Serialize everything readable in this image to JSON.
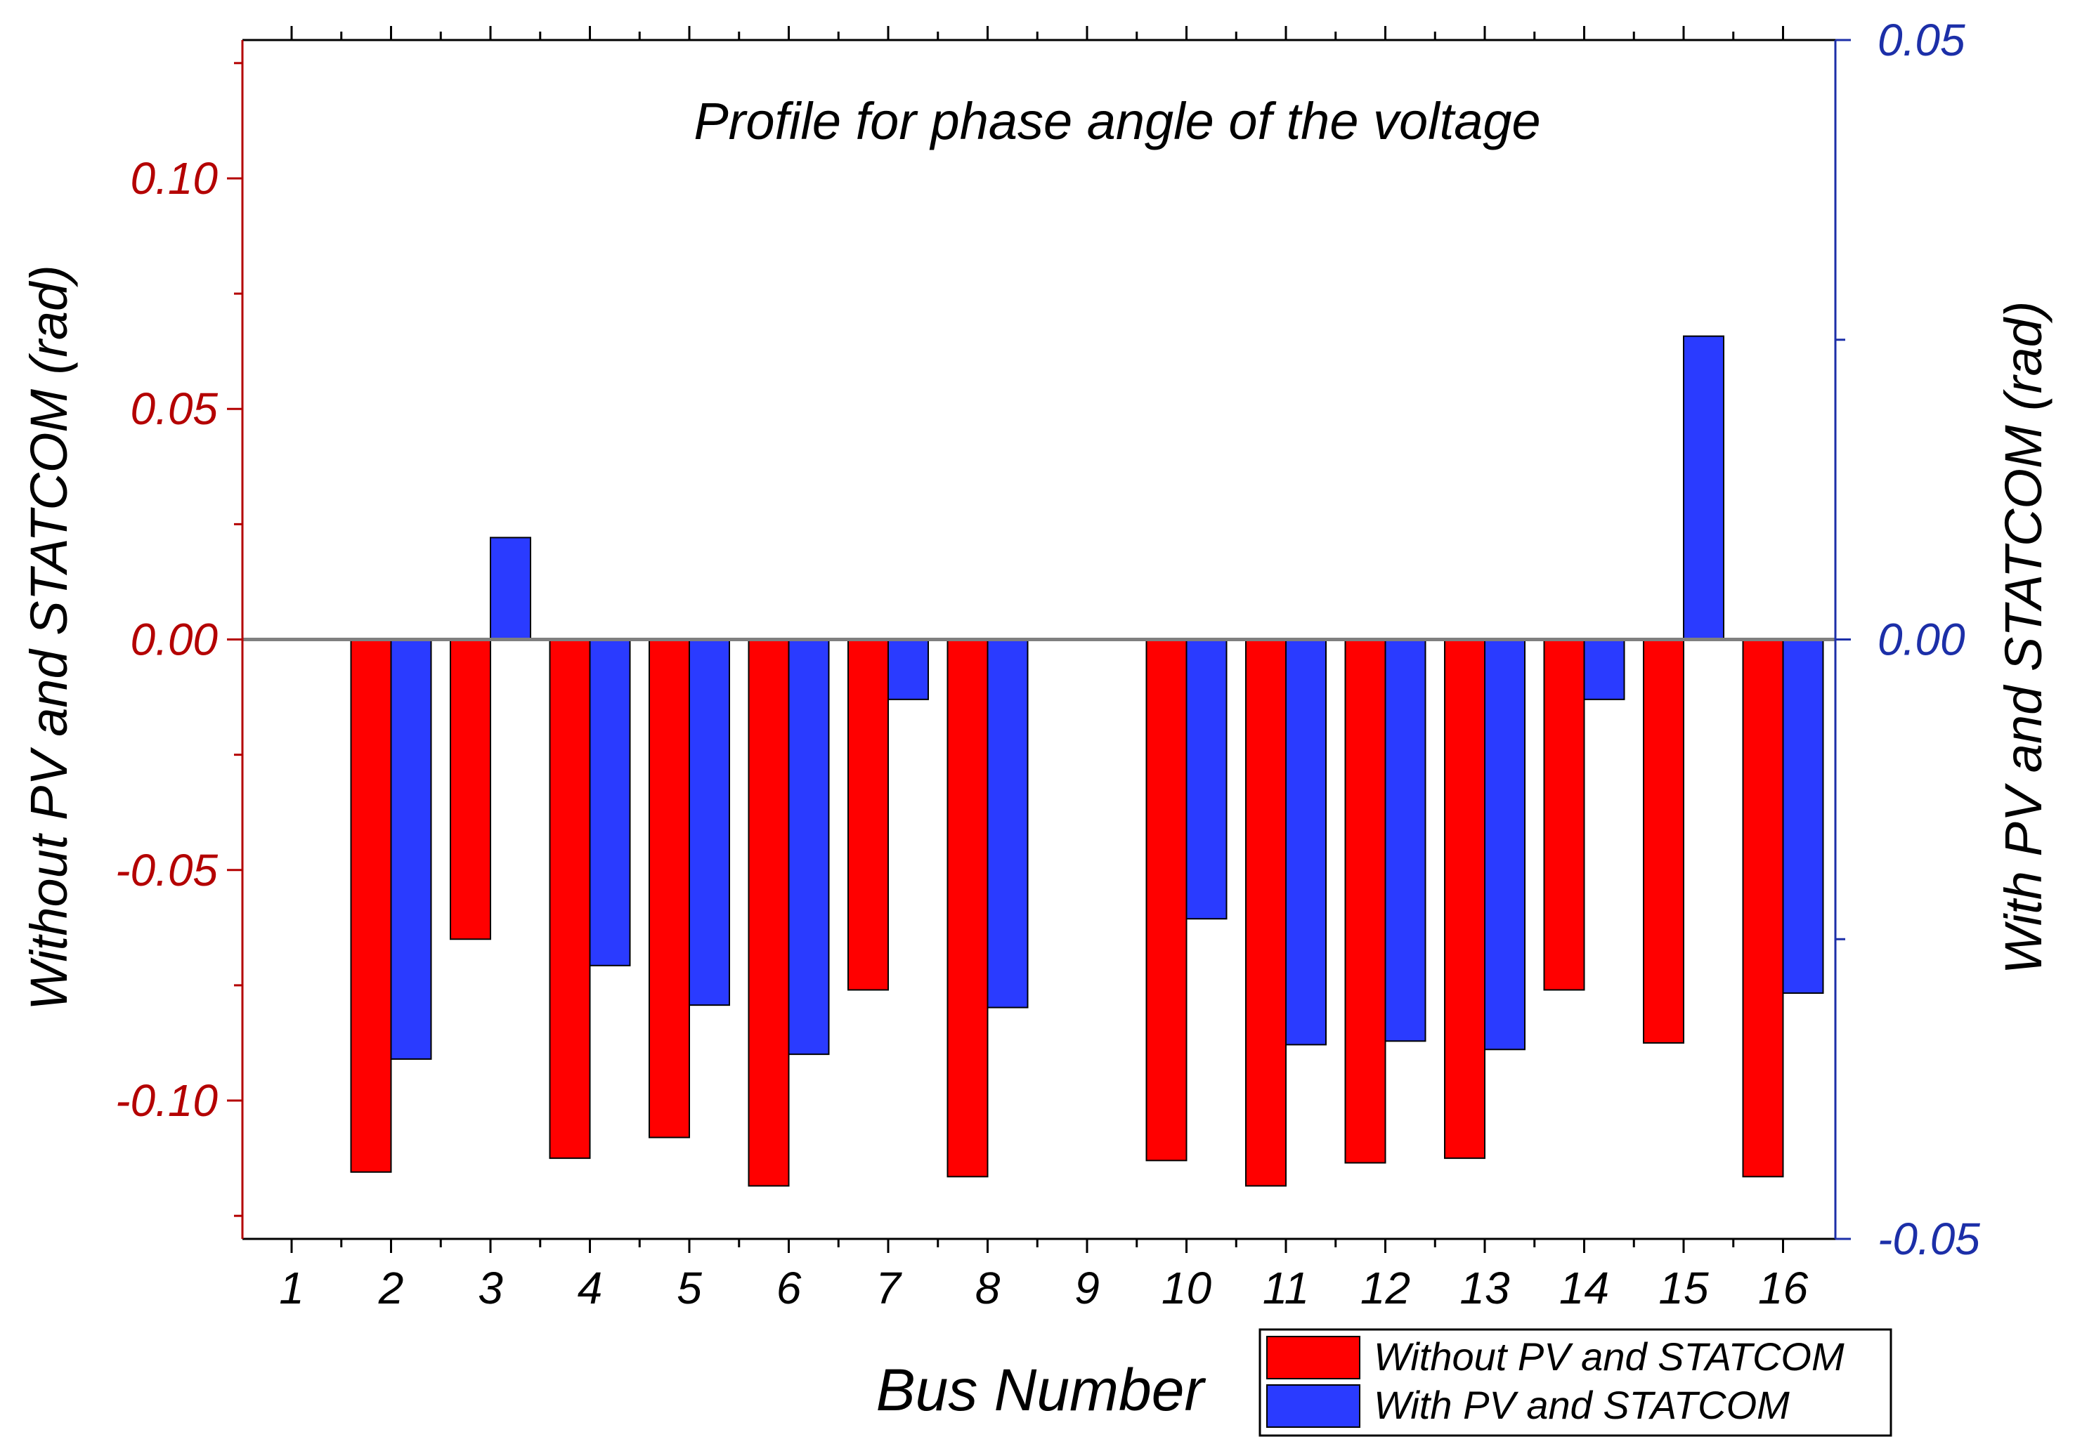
{
  "colors": {
    "left_axis": "#b40000",
    "right_axis": "#1c2fa8",
    "series_without": "#ff0000",
    "series_with": "#2a3bff",
    "zero_line": "#808080",
    "frame": "#000000"
  },
  "chart_data": {
    "type": "bar",
    "title": "Profile for phase angle of the voltage",
    "xlabel": "Bus Number",
    "ylabel_left": "Without PV and STATCOM (rad)",
    "ylabel_right": "With PV and STATCOM (rad)",
    "categories": [
      "1",
      "2",
      "3",
      "4",
      "5",
      "6",
      "7",
      "8",
      "9",
      "10",
      "11",
      "12",
      "13",
      "14",
      "15",
      "16"
    ],
    "ylim_left": [
      -0.13,
      0.13
    ],
    "yticks_left": [
      "0.10",
      "0.05",
      "0.00",
      "-0.05",
      "-0.10"
    ],
    "yticks_left_values": [
      0.1,
      0.05,
      0.0,
      -0.05,
      -0.1
    ],
    "ylim_right": [
      -0.05,
      0.05
    ],
    "yticks_right": [
      "0.05",
      "0.00",
      "-0.05"
    ],
    "yticks_right_values": [
      0.05,
      0.0,
      -0.05
    ],
    "legend_position": "bottom-right",
    "series": [
      {
        "name": "Without PV and STATCOM",
        "axis": "left",
        "values": [
          0,
          -0.1155,
          -0.065,
          -0.1125,
          -0.108,
          -0.1185,
          -0.076,
          -0.1165,
          0,
          -0.113,
          -0.1185,
          -0.1135,
          -0.1125,
          -0.076,
          -0.0875,
          -0.1165
        ]
      },
      {
        "name": "With PV and STATCOM",
        "axis": "right",
        "values": [
          0,
          -0.035,
          0.0085,
          -0.0272,
          -0.0305,
          -0.0346,
          -0.005,
          -0.0307,
          0,
          -0.0233,
          -0.0338,
          -0.0335,
          -0.0342,
          -0.005,
          0.0253,
          -0.0295
        ]
      }
    ]
  }
}
